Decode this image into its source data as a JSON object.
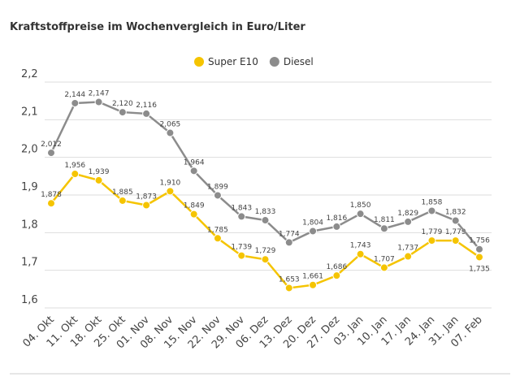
{
  "chart_data": {
    "type": "line",
    "title": "Kraftstoffpreise im Wochenvergleich in Euro/Liter",
    "categories": [
      "04. Okt",
      "11. Okt",
      "18. Okt",
      "25. Okt",
      "01. Nov",
      "08. Nov",
      "15. Nov",
      "22. Nov",
      "29. Nov",
      "06. Dez",
      "13. Dez",
      "20. Dez",
      "27. Dez",
      "03. Jan",
      "10. Jan",
      "17. Jan",
      "24. Jan",
      "31. Jan",
      "07. Feb"
    ],
    "series": [
      {
        "name": "Super E10",
        "color": "#f5c400",
        "values": [
          1.878,
          1.956,
          1.939,
          1.885,
          1.873,
          1.91,
          1.849,
          1.785,
          1.739,
          1.729,
          1.653,
          1.661,
          1.686,
          1.743,
          1.707,
          1.737,
          1.779,
          1.779,
          1.735
        ],
        "value_labels": [
          "1,878",
          "1,956",
          "1,939",
          "1,885",
          "1,873",
          "1,910",
          "1,849",
          "1,785",
          "1,739",
          "1,729",
          "1,653",
          "1,661",
          "1,686",
          "1,743",
          "1,707",
          "1,737",
          "1,779",
          "1,779",
          "1,735"
        ]
      },
      {
        "name": "Diesel",
        "color": "#8c8c8c",
        "values": [
          2.012,
          2.144,
          2.147,
          2.12,
          2.116,
          2.065,
          1.964,
          1.899,
          1.843,
          1.833,
          1.774,
          1.804,
          1.816,
          1.85,
          1.811,
          1.829,
          1.858,
          1.832,
          1.756
        ],
        "value_labels": [
          "2,012",
          "2,144",
          "2,147",
          "2,120",
          "2,116",
          "2,065",
          "1,964",
          "1,899",
          "1,843",
          "1,833",
          "1,774",
          "1,804",
          "1,816",
          "1,850",
          "1,811",
          "1,829",
          "1,858",
          "1,832",
          "1,756"
        ]
      }
    ],
    "ylim": [
      1.6,
      2.2
    ],
    "yticks": [
      {
        "value": 1.6,
        "label": "1,6"
      },
      {
        "value": 1.7,
        "label": "1,7"
      },
      {
        "value": 1.8,
        "label": "1,8"
      },
      {
        "value": 1.9,
        "label": "1,9"
      },
      {
        "value": 2.0,
        "label": "2,0"
      },
      {
        "value": 2.1,
        "label": "2,1"
      },
      {
        "value": 2.2,
        "label": "2,2"
      }
    ],
    "grid": true,
    "legend": "top"
  }
}
